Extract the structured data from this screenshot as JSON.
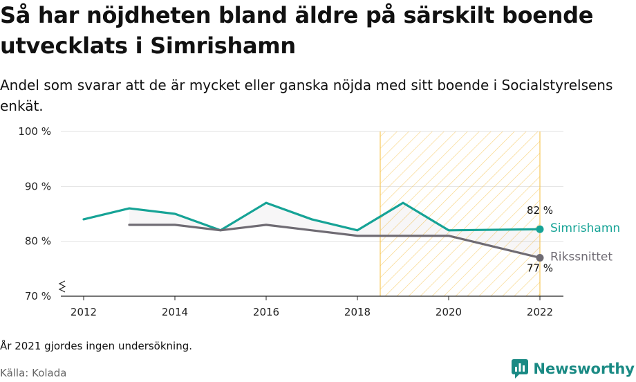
{
  "title": "Så har nöjdheten bland äldre på särskilt boende utvecklats i Simrishamn",
  "subtitle": "Andel som svarar att de är mycket eller ganska nöjda med sitt boende i Socialstyrelsens enkät.",
  "note": "År 2021 gjordes ingen undersökning.",
  "source": "Källa: Kolada",
  "brand": "Newsworthy",
  "colors": {
    "simrishamn": "#16a396",
    "riket": "#6f6b73",
    "highlight": "#f6c75a",
    "brand": "#1a8a84"
  },
  "chart_data": {
    "type": "line",
    "xlim": [
      2012,
      2022
    ],
    "ylim": [
      70,
      100
    ],
    "x_ticks": [
      2012,
      2014,
      2016,
      2018,
      2020,
      2022
    ],
    "x_tick_labels": [
      "2012",
      "2014",
      "2016",
      "2018",
      "2020",
      "2022"
    ],
    "y_ticks": [
      70,
      80,
      90,
      100
    ],
    "y_tick_labels": [
      "70 %",
      "80 %",
      "90 %",
      "100 %"
    ],
    "highlight_range": [
      2018.5,
      2022
    ],
    "series": [
      {
        "name": "Simrishamn",
        "color": "#16a396",
        "x": [
          2012,
          2013,
          2014,
          2015,
          2016,
          2017,
          2018,
          2019,
          2020,
          2022
        ],
        "values": [
          84,
          86,
          85,
          82,
          87,
          84,
          82,
          87,
          82,
          82.2
        ],
        "end_label": "82 %"
      },
      {
        "name": "Rikssnittet",
        "color": "#6f6b73",
        "x": [
          2013,
          2014,
          2015,
          2016,
          2017,
          2018,
          2019,
          2020,
          2022
        ],
        "values": [
          83,
          83,
          82,
          83,
          82,
          81,
          81,
          81,
          77
        ],
        "end_label": "77 %"
      }
    ]
  }
}
